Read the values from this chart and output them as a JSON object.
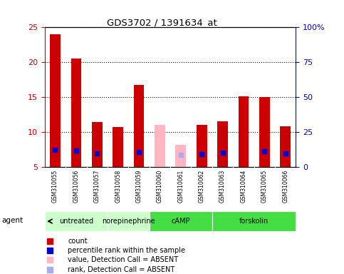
{
  "title": "GDS3702 / 1391634_at",
  "samples": [
    "GSM310055",
    "GSM310056",
    "GSM310057",
    "GSM310058",
    "GSM310059",
    "GSM310060",
    "GSM310061",
    "GSM310062",
    "GSM310063",
    "GSM310064",
    "GSM310065",
    "GSM310066"
  ],
  "count_values": [
    24.0,
    20.5,
    11.5,
    10.7,
    16.8,
    null,
    null,
    11.0,
    11.6,
    15.1,
    15.0,
    10.8
  ],
  "rank_values": [
    12.5,
    12.0,
    10.0,
    null,
    11.0,
    null,
    null,
    9.5,
    10.3,
    null,
    11.3,
    9.8
  ],
  "absent_value_values": [
    null,
    null,
    null,
    null,
    null,
    11.0,
    8.2,
    null,
    null,
    null,
    null,
    null
  ],
  "absent_rank_values": [
    null,
    null,
    null,
    null,
    null,
    null,
    9.0,
    null,
    null,
    null,
    null,
    null
  ],
  "ylim_left": [
    5,
    25
  ],
  "ylim_right": [
    0,
    100
  ],
  "bar_width": 0.5,
  "count_color": "#cc0000",
  "rank_color": "#0000cc",
  "absent_value_color": "#ffb6c1",
  "absent_rank_color": "#aaaaee",
  "sample_bg": "#c8c8c8",
  "agent_colors": [
    "#ccffcc",
    "#ccffcc",
    "#44dd44",
    "#44dd44"
  ],
  "agent_labels": [
    "untreated",
    "norepinephrine",
    "cAMP",
    "forskolin"
  ],
  "agent_ranges": [
    [
      0,
      3
    ],
    [
      3,
      5
    ],
    [
      5,
      8
    ],
    [
      8,
      12
    ]
  ],
  "grid_color": "#000000",
  "yticks_left": [
    5,
    10,
    15,
    20,
    25
  ],
  "yticks_right": [
    0,
    25,
    50,
    75,
    100
  ],
  "ytick_right_labels": [
    "0",
    "25",
    "50",
    "75",
    "100%"
  ]
}
